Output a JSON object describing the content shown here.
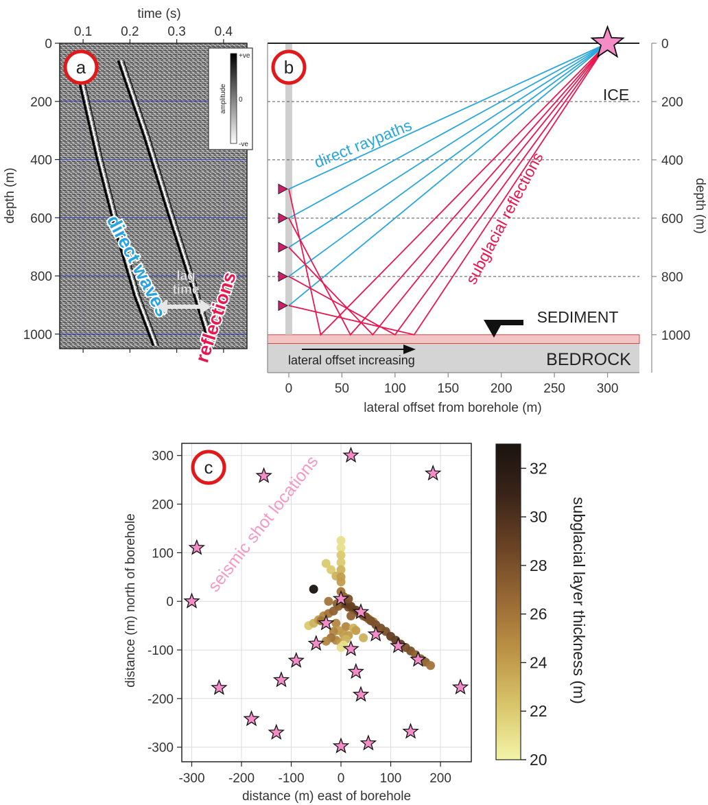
{
  "chart_data": [
    {
      "panel": "a",
      "type": "heatmap",
      "panel_label": "a",
      "xlabel": "time (s)",
      "ylabel": "depth (m)",
      "x_ticks": [
        0.1,
        0.2,
        0.3,
        0.4
      ],
      "y_ticks": [
        0,
        200,
        400,
        600,
        800,
        1000
      ],
      "xlim": [
        0.05,
        0.45
      ],
      "ylim": [
        0,
        1050
      ],
      "grid": true,
      "grid_color": "#2b3bd6",
      "colorbar": {
        "title": "amplitude",
        "max_label": "+ve",
        "mid_label": "0",
        "min_label": "-ve"
      },
      "direct_wave_arrival": {
        "x": [
          0.09,
          0.13,
          0.17,
          0.21,
          0.25
        ],
        "y": [
          120,
          400,
          650,
          870,
          1040
        ]
      },
      "reflection_arrival": {
        "x": [
          0.175,
          0.23,
          0.28,
          0.33,
          0.37
        ],
        "y": [
          60,
          320,
          580,
          830,
          1040
        ]
      },
      "annotations": {
        "direct": "direct waves",
        "reflections": "reflections",
        "lag_line1": "lag",
        "lag_line2": "time"
      },
      "colors": {
        "direct": "#29a3e0",
        "reflections": "#e8174f",
        "lag": "#e6e6e6"
      }
    },
    {
      "panel": "b",
      "type": "line",
      "panel_label": "b",
      "xlabel": "lateral offset from borehole (m)",
      "ylabel": "depth (m)",
      "x_ticks": [
        0,
        50,
        100,
        150,
        200,
        250,
        300
      ],
      "y_ticks": [
        0,
        200,
        400,
        600,
        800,
        1000
      ],
      "xlim": [
        -20,
        330
      ],
      "ylim": [
        0,
        1130
      ],
      "source": {
        "x": 300,
        "y": 0
      },
      "receiver_depths": [
        500,
        600,
        700,
        800,
        900
      ],
      "reflection_points_x": [
        30,
        58,
        79,
        100,
        118
      ],
      "bed_depth": 1000,
      "sediment_depth": [
        1000,
        1030
      ],
      "layer_labels": {
        "ice": "ICE",
        "sediment": "SEDIMENT",
        "bedrock": "BEDROCK"
      },
      "annotations": {
        "direct": "direct raypaths",
        "reflections": "subglacial reflections",
        "offset": "lateral offset increasing"
      },
      "colors": {
        "direct": "#2aa6dc",
        "reflections": "#e8174f",
        "sediment": "#f4c4c4",
        "bedrock": "#d4d4d4",
        "receiver": "#cf1f6c",
        "star": "#f48cc7"
      }
    },
    {
      "panel": "c",
      "type": "scatter",
      "panel_label": "c",
      "xlabel": "distance (m) east of borehole",
      "ylabel": "distance (m) north of borehole",
      "x_ticks": [
        -300,
        -200,
        -100,
        0,
        100,
        200
      ],
      "y_ticks": [
        -300,
        -200,
        -100,
        0,
        100,
        200,
        300
      ],
      "xlim": [
        -320,
        262
      ],
      "ylim": [
        -330,
        325
      ],
      "grid": true,
      "annotation": "seismic shot locations",
      "shot_locations": {
        "x": [
          20,
          -155,
          185,
          -290,
          -300,
          -245,
          -180,
          -130,
          -120,
          -90,
          -50,
          -30,
          0,
          20,
          40,
          70,
          115,
          155,
          240,
          140,
          55,
          0,
          40,
          30
        ],
        "y": [
          300,
          258,
          263,
          110,
          0,
          -178,
          -242,
          -270,
          -162,
          -122,
          -87,
          -45,
          5,
          -98,
          -22,
          -68,
          -92,
          -120,
          -177,
          -268,
          -292,
          -298,
          -192,
          -145
        ]
      },
      "thickness_points": {
        "x": [
          -55,
          -65,
          -55,
          -45,
          -35,
          -25,
          -15,
          -5,
          5,
          15,
          25,
          35,
          45,
          55,
          65,
          -30,
          -20,
          -10,
          0,
          10,
          20,
          30,
          40,
          50,
          60,
          70,
          80,
          90,
          100,
          110,
          120,
          130,
          140,
          150,
          160,
          170,
          180,
          0,
          0,
          0,
          0,
          0,
          0,
          0,
          -10,
          10,
          -5,
          5,
          15,
          -15,
          25,
          -10,
          -20,
          -30,
          -40,
          0,
          10,
          20,
          -25,
          5,
          15,
          30,
          45,
          0,
          5,
          -8
        ],
        "y": [
          25,
          -50,
          -45,
          -38,
          -30,
          -25,
          -20,
          -10,
          -5,
          -12,
          -18,
          -24,
          -30,
          -36,
          -42,
          78,
          65,
          52,
          40,
          -5,
          -10,
          -18,
          -25,
          -32,
          -40,
          -48,
          -55,
          -62,
          -72,
          -80,
          -88,
          -95,
          -102,
          -110,
          -118,
          -125,
          -132,
          125,
          110,
          95,
          80,
          65,
          50,
          20,
          -45,
          -52,
          -60,
          -68,
          -70,
          -62,
          -55,
          -80,
          -75,
          -82,
          -40,
          -85,
          -78,
          -30,
          0,
          10,
          5,
          -60,
          -75,
          -95,
          -90,
          -5
        ],
        "values": [
          33,
          22,
          23,
          24,
          25,
          26,
          27,
          27,
          28,
          28,
          28,
          27,
          27,
          26,
          25,
          22,
          22,
          23,
          24,
          29,
          29,
          29,
          29,
          28,
          28,
          28,
          28,
          28,
          29,
          29,
          29,
          28,
          28,
          27,
          27,
          27,
          26,
          21,
          21,
          22,
          22,
          23,
          24,
          26,
          25,
          25,
          24,
          24,
          24,
          25,
          23,
          25,
          26,
          25,
          26,
          24,
          23,
          27,
          26,
          27,
          28,
          24,
          23,
          21,
          21,
          27
        ]
      },
      "colorbar": {
        "label": "subglacial layer thickness (m)",
        "range": [
          20,
          33
        ],
        "ticks": [
          20,
          22,
          24,
          26,
          28,
          30,
          32
        ],
        "colors": [
          "#f3f4a8",
          "#d9c66b",
          "#bd9446",
          "#9a6b35",
          "#6b4425",
          "#3a2418",
          "#1a1410"
        ]
      },
      "colors": {
        "star": "#f48cc7",
        "annotation": "#f599c6"
      }
    }
  ]
}
